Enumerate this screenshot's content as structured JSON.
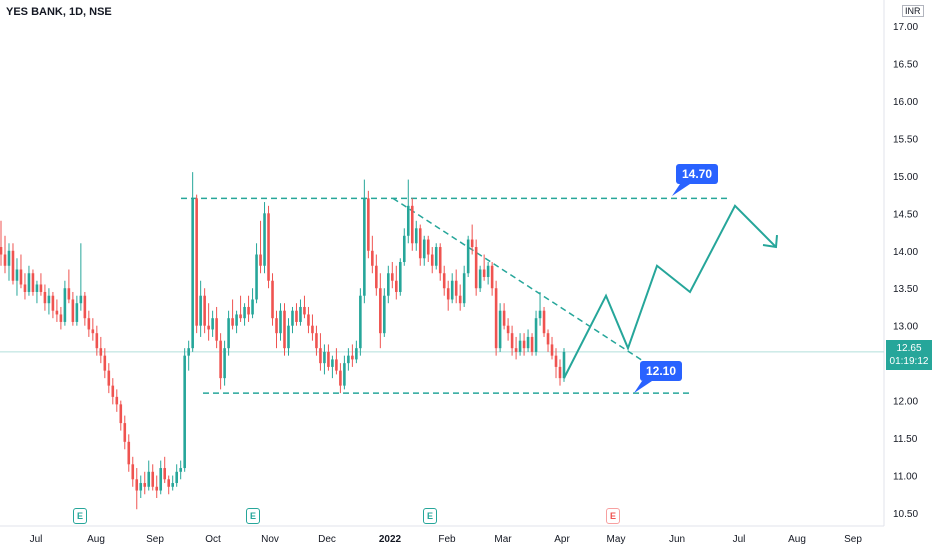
{
  "chart_data": {
    "type": "candlestick",
    "symbol_title": "YES BANK, 1D, NSE",
    "currency": "INR",
    "ylim": [
      10.4,
      17.2
    ],
    "y_ticks": [
      "17.00",
      "16.50",
      "16.00",
      "15.50",
      "15.00",
      "14.50",
      "14.00",
      "13.50",
      "13.00",
      "12.50",
      "12.00",
      "11.50",
      "11.00",
      "10.50"
    ],
    "x_ticks": [
      "Jul",
      "Aug",
      "Sep",
      "Oct",
      "Nov",
      "Dec",
      "2022",
      "Feb",
      "Mar",
      "Apr",
      "May",
      "Jun",
      "Jul",
      "Aug",
      "Sep"
    ],
    "last_price": "12.65",
    "countdown": "01:19:12",
    "resistance": 14.7,
    "support": 12.1,
    "resistance_label": "14.70",
    "support_label": "12.10",
    "candles": [
      [
        14.05,
        14.4,
        13.8,
        13.95
      ],
      [
        13.95,
        14.2,
        13.7,
        13.8
      ],
      [
        13.8,
        14.1,
        13.6,
        14.0
      ],
      [
        14.0,
        14.1,
        13.55,
        13.6
      ],
      [
        13.6,
        13.9,
        13.4,
        13.75
      ],
      [
        13.75,
        13.95,
        13.5,
        13.55
      ],
      [
        13.55,
        13.7,
        13.35,
        13.45
      ],
      [
        13.45,
        13.8,
        13.4,
        13.7
      ],
      [
        13.7,
        13.75,
        13.4,
        13.45
      ],
      [
        13.45,
        13.6,
        13.3,
        13.55
      ],
      [
        13.55,
        13.7,
        13.4,
        13.45
      ],
      [
        13.45,
        13.55,
        13.2,
        13.3
      ],
      [
        13.3,
        13.5,
        13.15,
        13.4
      ],
      [
        13.4,
        13.45,
        13.1,
        13.2
      ],
      [
        13.2,
        13.35,
        13.05,
        13.15
      ],
      [
        13.15,
        13.25,
        12.95,
        13.05
      ],
      [
        13.05,
        13.6,
        13.0,
        13.5
      ],
      [
        13.5,
        13.75,
        13.3,
        13.35
      ],
      [
        13.35,
        13.45,
        13.0,
        13.05
      ],
      [
        13.05,
        13.4,
        13.0,
        13.3
      ],
      [
        13.3,
        14.1,
        13.2,
        13.4
      ],
      [
        13.4,
        13.45,
        13.0,
        13.1
      ],
      [
        13.1,
        13.2,
        12.85,
        12.95
      ],
      [
        12.95,
        13.1,
        12.8,
        12.9
      ],
      [
        12.9,
        13.0,
        12.6,
        12.7
      ],
      [
        12.7,
        12.85,
        12.5,
        12.6
      ],
      [
        12.6,
        12.7,
        12.3,
        12.4
      ],
      [
        12.4,
        12.5,
        12.1,
        12.2
      ],
      [
        12.2,
        12.3,
        11.95,
        12.05
      ],
      [
        12.05,
        12.15,
        11.85,
        11.95
      ],
      [
        11.95,
        12.0,
        11.6,
        11.7
      ],
      [
        11.7,
        11.8,
        11.35,
        11.45
      ],
      [
        11.45,
        11.55,
        11.05,
        11.15
      ],
      [
        11.15,
        11.25,
        10.85,
        10.95
      ],
      [
        10.95,
        11.1,
        10.55,
        10.8
      ],
      [
        10.8,
        11.0,
        10.7,
        10.9
      ],
      [
        10.9,
        11.05,
        10.75,
        10.85
      ],
      [
        10.85,
        11.2,
        10.8,
        11.05
      ],
      [
        11.05,
        11.15,
        10.8,
        10.85
      ],
      [
        10.85,
        11.0,
        10.7,
        10.8
      ],
      [
        10.8,
        11.2,
        10.75,
        11.1
      ],
      [
        11.1,
        11.25,
        10.9,
        10.95
      ],
      [
        10.95,
        11.0,
        10.75,
        10.85
      ],
      [
        10.85,
        11.0,
        10.8,
        10.9
      ],
      [
        10.9,
        11.15,
        10.85,
        11.05
      ],
      [
        11.05,
        11.2,
        10.95,
        11.1
      ],
      [
        11.1,
        12.7,
        11.05,
        12.6
      ],
      [
        12.6,
        12.8,
        12.4,
        12.7
      ],
      [
        12.7,
        15.05,
        12.65,
        14.7
      ],
      [
        14.7,
        14.75,
        12.9,
        13.0
      ],
      [
        13.0,
        13.6,
        12.85,
        13.4
      ],
      [
        13.4,
        13.5,
        12.9,
        13.0
      ],
      [
        13.0,
        13.3,
        12.8,
        12.95
      ],
      [
        12.95,
        13.2,
        12.85,
        13.1
      ],
      [
        13.1,
        13.25,
        12.7,
        12.8
      ],
      [
        12.8,
        12.9,
        12.15,
        12.3
      ],
      [
        12.3,
        12.8,
        12.2,
        12.7
      ],
      [
        12.7,
        13.2,
        12.6,
        13.1
      ],
      [
        13.1,
        13.35,
        12.95,
        13.0
      ],
      [
        13.0,
        13.2,
        12.9,
        13.15
      ],
      [
        13.15,
        13.4,
        13.05,
        13.1
      ],
      [
        13.1,
        13.3,
        13.0,
        13.25
      ],
      [
        13.25,
        13.4,
        13.05,
        13.15
      ],
      [
        13.15,
        13.5,
        13.1,
        13.35
      ],
      [
        13.35,
        14.1,
        13.3,
        13.95
      ],
      [
        13.95,
        14.4,
        13.7,
        13.8
      ],
      [
        13.8,
        14.65,
        13.7,
        14.5
      ],
      [
        14.5,
        14.6,
        13.5,
        13.6
      ],
      [
        13.6,
        13.7,
        13.0,
        13.1
      ],
      [
        13.1,
        13.2,
        12.7,
        12.9
      ],
      [
        12.9,
        13.3,
        12.8,
        13.2
      ],
      [
        13.2,
        13.3,
        12.6,
        12.7
      ],
      [
        12.7,
        13.1,
        12.6,
        13.0
      ],
      [
        13.0,
        13.25,
        12.9,
        13.2
      ],
      [
        13.2,
        13.3,
        13.0,
        13.05
      ],
      [
        13.05,
        13.35,
        13.0,
        13.25
      ],
      [
        13.25,
        13.4,
        13.1,
        13.15
      ],
      [
        13.15,
        13.25,
        12.9,
        13.0
      ],
      [
        13.0,
        13.15,
        12.8,
        12.9
      ],
      [
        12.9,
        13.0,
        12.6,
        12.7
      ],
      [
        12.7,
        12.9,
        12.4,
        12.5
      ],
      [
        12.5,
        12.75,
        12.35,
        12.65
      ],
      [
        12.65,
        12.75,
        12.4,
        12.45
      ],
      [
        12.45,
        12.6,
        12.3,
        12.55
      ],
      [
        12.55,
        12.7,
        12.35,
        12.4
      ],
      [
        12.4,
        12.5,
        12.1,
        12.2
      ],
      [
        12.2,
        12.6,
        12.15,
        12.5
      ],
      [
        12.5,
        12.7,
        12.4,
        12.6
      ],
      [
        12.6,
        12.75,
        12.45,
        12.55
      ],
      [
        12.55,
        12.8,
        12.5,
        12.7
      ],
      [
        12.7,
        13.5,
        12.6,
        13.4
      ],
      [
        13.4,
        14.95,
        13.3,
        14.7
      ],
      [
        14.7,
        14.8,
        13.9,
        14.0
      ],
      [
        14.0,
        14.2,
        13.7,
        13.8
      ],
      [
        13.8,
        13.95,
        13.4,
        13.5
      ],
      [
        13.5,
        13.7,
        12.7,
        12.9
      ],
      [
        12.9,
        13.5,
        12.85,
        13.4
      ],
      [
        13.4,
        13.8,
        13.3,
        13.7
      ],
      [
        13.7,
        13.85,
        13.5,
        13.6
      ],
      [
        13.6,
        13.8,
        13.35,
        13.45
      ],
      [
        13.45,
        13.9,
        13.4,
        13.85
      ],
      [
        13.85,
        14.3,
        13.8,
        14.2
      ],
      [
        14.2,
        14.95,
        14.1,
        14.6
      ],
      [
        14.6,
        14.7,
        14.0,
        14.1
      ],
      [
        14.1,
        14.4,
        14.0,
        14.3
      ],
      [
        14.3,
        14.35,
        13.8,
        13.9
      ],
      [
        13.9,
        14.2,
        13.8,
        14.15
      ],
      [
        14.15,
        14.2,
        13.85,
        13.95
      ],
      [
        13.95,
        14.05,
        13.7,
        13.8
      ],
      [
        13.8,
        14.1,
        13.75,
        14.05
      ],
      [
        14.05,
        14.1,
        13.6,
        13.7
      ],
      [
        13.7,
        13.8,
        13.4,
        13.5
      ],
      [
        13.5,
        13.6,
        13.2,
        13.35
      ],
      [
        13.35,
        13.7,
        13.3,
        13.6
      ],
      [
        13.6,
        13.75,
        13.3,
        13.4
      ],
      [
        13.4,
        13.55,
        13.2,
        13.3
      ],
      [
        13.3,
        13.8,
        13.25,
        13.7
      ],
      [
        13.7,
        14.2,
        13.65,
        14.15
      ],
      [
        14.15,
        14.35,
        13.95,
        14.05
      ],
      [
        14.05,
        14.15,
        13.4,
        13.5
      ],
      [
        13.5,
        13.8,
        13.45,
        13.75
      ],
      [
        13.75,
        13.95,
        13.6,
        13.65
      ],
      [
        13.65,
        13.85,
        13.55,
        13.8
      ],
      [
        13.8,
        13.85,
        13.4,
        13.5
      ],
      [
        13.5,
        13.6,
        12.6,
        12.7
      ],
      [
        12.7,
        13.3,
        12.65,
        13.2
      ],
      [
        13.2,
        13.3,
        12.95,
        13.0
      ],
      [
        13.0,
        13.1,
        12.8,
        12.9
      ],
      [
        12.9,
        13.0,
        12.6,
        12.7
      ],
      [
        12.7,
        12.85,
        12.55,
        12.65
      ],
      [
        12.65,
        12.9,
        12.6,
        12.8
      ],
      [
        12.8,
        12.9,
        12.6,
        12.7
      ],
      [
        12.7,
        12.95,
        12.65,
        12.85
      ],
      [
        12.85,
        12.9,
        12.6,
        12.65
      ],
      [
        12.65,
        13.2,
        12.6,
        13.1
      ],
      [
        13.1,
        13.45,
        13.0,
        13.2
      ],
      [
        13.2,
        13.25,
        12.85,
        12.9
      ],
      [
        12.9,
        12.95,
        12.65,
        12.75
      ],
      [
        12.75,
        12.85,
        12.55,
        12.6
      ],
      [
        12.6,
        12.7,
        12.3,
        12.45
      ],
      [
        12.45,
        12.55,
        12.2,
        12.3
      ],
      [
        12.3,
        12.7,
        12.25,
        12.65
      ]
    ],
    "projection": [
      [
        12.3,
        0
      ],
      [
        13.4,
        1
      ],
      [
        12.7,
        2
      ],
      [
        13.8,
        3
      ],
      [
        13.45,
        4
      ],
      [
        14.6,
        5
      ],
      [
        14.05,
        6
      ]
    ],
    "earnings_markers": [
      "E",
      "E",
      "E",
      "E"
    ]
  }
}
